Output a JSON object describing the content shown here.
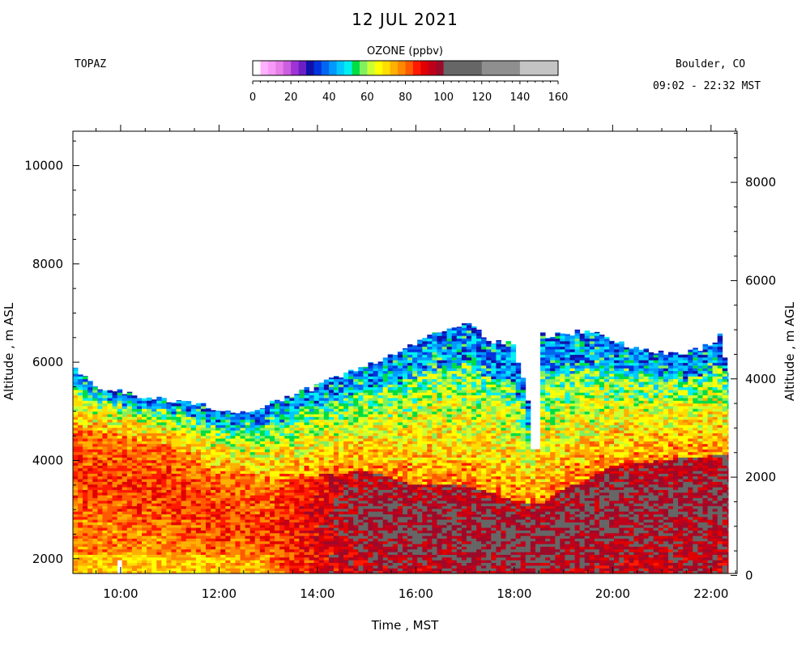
{
  "chart_data": {
    "type": "heatmap",
    "title": "12 JUL 2021",
    "site": "TOPAZ",
    "location": "Boulder, CO",
    "time_range": "09:02 - 22:32 MST",
    "colorbar": {
      "label": "OZONE (ppbv)",
      "range": [
        0,
        160
      ],
      "ticks": [
        "0",
        "20",
        "40",
        "60",
        "80",
        "100",
        "120",
        "140",
        "160"
      ],
      "bins": [
        {
          "from": 0,
          "to": 4,
          "color": "#ffffff"
        },
        {
          "from": 4,
          "to": 8,
          "color": "#ffb3ff"
        },
        {
          "from": 8,
          "to": 12,
          "color": "#f799f7"
        },
        {
          "from": 12,
          "to": 16,
          "color": "#e87ee8"
        },
        {
          "from": 16,
          "to": 20,
          "color": "#cc5ee0"
        },
        {
          "from": 20,
          "to": 24,
          "color": "#a033d6"
        },
        {
          "from": 24,
          "to": 28,
          "color": "#6b1fc4"
        },
        {
          "from": 28,
          "to": 32,
          "color": "#1010a8"
        },
        {
          "from": 32,
          "to": 36,
          "color": "#0033dd"
        },
        {
          "from": 36,
          "to": 40,
          "color": "#0066f0"
        },
        {
          "from": 40,
          "to": 44,
          "color": "#0099ff"
        },
        {
          "from": 44,
          "to": 48,
          "color": "#00c8ff"
        },
        {
          "from": 48,
          "to": 52,
          "color": "#00f0f0"
        },
        {
          "from": 52,
          "to": 56,
          "color": "#00dd44"
        },
        {
          "from": 56,
          "to": 60,
          "color": "#80f060"
        },
        {
          "from": 60,
          "to": 64,
          "color": "#ccff33"
        },
        {
          "from": 64,
          "to": 68,
          "color": "#ffff00"
        },
        {
          "from": 68,
          "to": 72,
          "color": "#ffdd00"
        },
        {
          "from": 72,
          "to": 76,
          "color": "#ffb000"
        },
        {
          "from": 76,
          "to": 80,
          "color": "#ff8800"
        },
        {
          "from": 80,
          "to": 84,
          "color": "#ff5a00"
        },
        {
          "from": 84,
          "to": 88,
          "color": "#ff1a00"
        },
        {
          "from": 88,
          "to": 92,
          "color": "#e00000"
        },
        {
          "from": 92,
          "to": 96,
          "color": "#c0001a"
        },
        {
          "from": 96,
          "to": 100,
          "color": "#9c0a2a"
        },
        {
          "from": 100,
          "to": 120,
          "color": "#666666"
        },
        {
          "from": 120,
          "to": 140,
          "color": "#8f8f8f"
        },
        {
          "from": 140,
          "to": 160,
          "color": "#c4c4c4"
        }
      ]
    },
    "x_axis": {
      "label": "Time , MST",
      "range_hours": [
        9.03,
        22.53
      ],
      "ticks": [
        "10:00",
        "12:00",
        "14:00",
        "16:00",
        "18:00",
        "20:00",
        "22:00"
      ]
    },
    "y_axis_left": {
      "label": "Altitude , m ASL",
      "range": [
        1700,
        10700
      ],
      "ticks": [
        "2000",
        "4000",
        "6000",
        "8000",
        "10000"
      ]
    },
    "y_axis_right": {
      "label": "Altitude , m AGL",
      "range": [
        0,
        9000
      ],
      "ticks": [
        "0",
        "2000",
        "4000",
        "6000",
        "8000"
      ],
      "surface_asl_m": 1660
    },
    "profile_top_asl": [
      [
        9.03,
        5920
      ],
      [
        9.3,
        5650
      ],
      [
        9.5,
        5450
      ],
      [
        10.0,
        5400
      ],
      [
        10.5,
        5300
      ],
      [
        11.0,
        5200
      ],
      [
        11.5,
        5150
      ],
      [
        12.0,
        5050
      ],
      [
        12.5,
        4980
      ],
      [
        13.0,
        5150
      ],
      [
        13.5,
        5350
      ],
      [
        14.0,
        5500
      ],
      [
        14.5,
        5750
      ],
      [
        15.0,
        5950
      ],
      [
        15.5,
        6150
      ],
      [
        16.0,
        6400
      ],
      [
        16.5,
        6600
      ],
      [
        17.0,
        6800
      ],
      [
        17.5,
        6450
      ],
      [
        18.0,
        6350
      ],
      [
        18.3,
        5200
      ],
      [
        18.5,
        6550
      ],
      [
        19.0,
        6550
      ],
      [
        19.5,
        6650
      ],
      [
        20.0,
        6400
      ],
      [
        20.5,
        6300
      ],
      [
        21.0,
        6200
      ],
      [
        21.5,
        6200
      ],
      [
        22.0,
        6350
      ],
      [
        22.2,
        6550
      ],
      [
        22.35,
        5750
      ]
    ],
    "high_ozone_layer_top_asl": [
      [
        9.03,
        4600
      ],
      [
        10.0,
        4450
      ],
      [
        11.0,
        4200
      ],
      [
        12.0,
        3700
      ],
      [
        13.0,
        3500
      ],
      [
        14.0,
        3700
      ],
      [
        15.0,
        3800
      ],
      [
        16.0,
        3500
      ],
      [
        17.0,
        3500
      ],
      [
        18.0,
        3200
      ],
      [
        18.5,
        3100
      ],
      [
        19.0,
        3400
      ],
      [
        20.0,
        3900
      ],
      [
        21.0,
        4000
      ],
      [
        22.0,
        4100
      ],
      [
        22.35,
        4100
      ]
    ],
    "data_gaps": [
      {
        "start_hr": 9.9,
        "end_hr": 10.0,
        "from_asl": 1700,
        "to_asl": 2000
      },
      {
        "start_hr": 17.48,
        "end_hr": 17.53,
        "from_asl": 5500,
        "to_asl": 6500
      },
      {
        "start_hr": 18.38,
        "end_hr": 18.5,
        "from_asl": 4250,
        "to_asl": 6700
      }
    ],
    "grid": false
  }
}
